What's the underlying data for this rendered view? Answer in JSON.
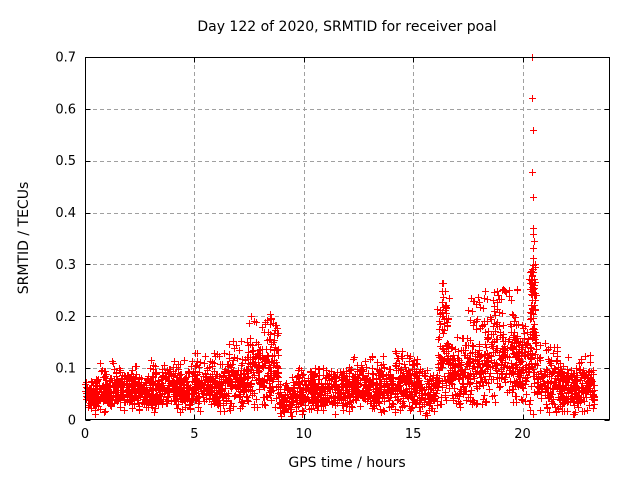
{
  "chart_data": {
    "type": "scatter",
    "title": "Day 122 of 2020, SRMTID for receiver poal",
    "xlabel": "GPS time / hours",
    "ylabel": "SRMTID / TECUs",
    "xlim": [
      0,
      24
    ],
    "ylim": [
      0,
      0.7
    ],
    "xticks": [
      {
        "v": 0,
        "label": "0"
      },
      {
        "v": 5,
        "label": "5"
      },
      {
        "v": 10,
        "label": "10"
      },
      {
        "v": 15,
        "label": "15"
      },
      {
        "v": 20,
        "label": "20"
      }
    ],
    "yticks": [
      {
        "v": 0.0,
        "label": "0"
      },
      {
        "v": 0.1,
        "label": "0.1"
      },
      {
        "v": 0.2,
        "label": "0.2"
      },
      {
        "v": 0.3,
        "label": "0.3"
      },
      {
        "v": 0.4,
        "label": "0.4"
      },
      {
        "v": 0.5,
        "label": "0.5"
      },
      {
        "v": 0.6,
        "label": "0.6"
      },
      {
        "v": 0.7,
        "label": "0.7"
      }
    ],
    "grid": true,
    "legend": false,
    "marker": "plus",
    "marker_color": "#ff0000",
    "grid_color": "#a0a0a0",
    "axis_color": "#000000",
    "background_color": "#ffffff",
    "seed": 20200122,
    "density_profile": [
      {
        "t0": 0.0,
        "t1": 0.6,
        "n": 90,
        "mode": 0.045,
        "spread": 0.018,
        "min": 0.012,
        "max": 0.08,
        "tailp": 0.08
      },
      {
        "t0": 0.6,
        "t1": 1.5,
        "n": 130,
        "mode": 0.055,
        "spread": 0.022,
        "min": 0.015,
        "max": 0.115,
        "tailp": 0.1
      },
      {
        "t0": 1.5,
        "t1": 3.0,
        "n": 210,
        "mode": 0.055,
        "spread": 0.022,
        "min": 0.015,
        "max": 0.105,
        "tailp": 0.1
      },
      {
        "t0": 3.0,
        "t1": 5.0,
        "n": 270,
        "mode": 0.057,
        "spread": 0.023,
        "min": 0.015,
        "max": 0.12,
        "tailp": 0.1
      },
      {
        "t0": 5.0,
        "t1": 6.5,
        "n": 200,
        "mode": 0.06,
        "spread": 0.025,
        "min": 0.018,
        "max": 0.13,
        "tailp": 0.1
      },
      {
        "t0": 6.5,
        "t1": 7.4,
        "n": 120,
        "mode": 0.07,
        "spread": 0.028,
        "min": 0.02,
        "max": 0.155,
        "tailp": 0.12
      },
      {
        "t0": 7.4,
        "t1": 8.85,
        "n": 200,
        "mode": 0.095,
        "spread": 0.042,
        "min": 0.025,
        "max": 0.205,
        "tailp": 0.15
      },
      {
        "t0": 8.85,
        "t1": 9.5,
        "n": 70,
        "mode": 0.04,
        "spread": 0.022,
        "min": 0.008,
        "max": 0.09,
        "tailp": 0.06
      },
      {
        "t0": 9.5,
        "t1": 12.0,
        "n": 320,
        "mode": 0.055,
        "spread": 0.023,
        "min": 0.012,
        "max": 0.1,
        "tailp": 0.08
      },
      {
        "t0": 12.0,
        "t1": 14.0,
        "n": 260,
        "mode": 0.06,
        "spread": 0.024,
        "min": 0.015,
        "max": 0.125,
        "tailp": 0.1
      },
      {
        "t0": 14.0,
        "t1": 15.3,
        "n": 170,
        "mode": 0.065,
        "spread": 0.027,
        "min": 0.015,
        "max": 0.135,
        "tailp": 0.1
      },
      {
        "t0": 15.3,
        "t1": 16.1,
        "n": 90,
        "mode": 0.05,
        "spread": 0.026,
        "min": 0.01,
        "max": 0.1,
        "tailp": 0.08
      },
      {
        "t0": 16.1,
        "t1": 16.65,
        "n": 85,
        "mode": 0.1,
        "spread": 0.05,
        "min": 0.03,
        "max": 0.265,
        "tailp": 0.3
      },
      {
        "t0": 16.65,
        "t1": 17.5,
        "n": 110,
        "mode": 0.08,
        "spread": 0.032,
        "min": 0.02,
        "max": 0.16,
        "tailp": 0.12
      },
      {
        "t0": 17.5,
        "t1": 18.25,
        "n": 100,
        "mode": 0.1,
        "spread": 0.045,
        "min": 0.03,
        "max": 0.24,
        "tailp": 0.18
      },
      {
        "t0": 18.25,
        "t1": 19.75,
        "n": 210,
        "mode": 0.115,
        "spread": 0.05,
        "min": 0.035,
        "max": 0.255,
        "tailp": 0.18
      },
      {
        "t0": 19.75,
        "t1": 20.3,
        "n": 80,
        "mode": 0.1,
        "spread": 0.04,
        "min": 0.03,
        "max": 0.185,
        "tailp": 0.12
      },
      {
        "t0": 20.3,
        "t1": 20.65,
        "n": 75,
        "mode": 0.13,
        "spread": 0.07,
        "min": 0.02,
        "max": 0.3,
        "tailp": 0.35
      },
      {
        "t0": 20.65,
        "t1": 21.6,
        "n": 110,
        "mode": 0.07,
        "spread": 0.035,
        "min": 0.015,
        "max": 0.155,
        "tailp": 0.1
      },
      {
        "t0": 21.6,
        "t1": 23.3,
        "n": 230,
        "mode": 0.06,
        "spread": 0.028,
        "min": 0.012,
        "max": 0.125,
        "tailp": 0.1
      }
    ],
    "outliers": [
      [
        20.42,
        0.7
      ],
      [
        20.45,
        0.62
      ],
      [
        20.46,
        0.56
      ],
      [
        20.44,
        0.478
      ],
      [
        20.47,
        0.43
      ],
      [
        20.5,
        0.37
      ],
      [
        20.48,
        0.358
      ],
      [
        20.52,
        0.345
      ],
      [
        20.5,
        0.332
      ],
      [
        20.46,
        0.312
      ],
      [
        20.55,
        0.3
      ],
      [
        20.42,
        0.292
      ],
      [
        20.5,
        0.285
      ],
      [
        20.53,
        0.272
      ],
      [
        20.43,
        0.262
      ],
      [
        20.47,
        0.252
      ],
      [
        20.51,
        0.244
      ],
      [
        20.45,
        0.232
      ],
      [
        20.41,
        0.222
      ],
      [
        20.56,
        0.212
      ],
      [
        20.49,
        0.205
      ],
      [
        20.47,
        0.196
      ],
      [
        20.52,
        0.186
      ],
      [
        20.45,
        0.176
      ],
      [
        20.5,
        0.166
      ],
      [
        20.55,
        0.156
      ],
      [
        20.6,
        0.15
      ],
      [
        20.5,
        0.012
      ],
      [
        16.33,
        0.265
      ],
      [
        16.31,
        0.248
      ],
      [
        16.35,
        0.238
      ],
      [
        16.3,
        0.228
      ],
      [
        16.36,
        0.218
      ],
      [
        16.32,
        0.208
      ],
      [
        16.5,
        0.218
      ],
      [
        16.52,
        0.206
      ],
      [
        16.49,
        0.196
      ],
      [
        8.45,
        0.205
      ],
      [
        8.52,
        0.196
      ],
      [
        8.3,
        0.192
      ],
      [
        8.6,
        0.188
      ],
      [
        19.1,
        0.252
      ],
      [
        19.25,
        0.246
      ],
      [
        18.9,
        0.242
      ],
      [
        17.95,
        0.238
      ],
      [
        1.25,
        0.113
      ],
      [
        6.05,
        0.128
      ],
      [
        14.5,
        0.133
      ]
    ]
  }
}
